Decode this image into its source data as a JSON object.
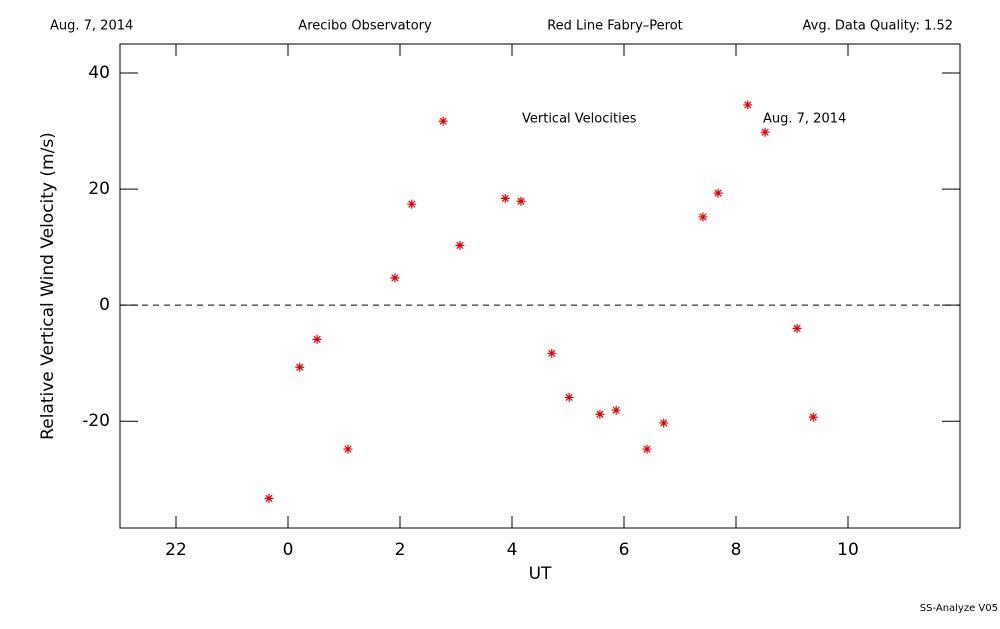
{
  "header": {
    "date": "Aug. 7, 2014",
    "site": "Arecibo Observatory",
    "instrument": "Red Line Fabry–Perot",
    "quality": "Avg. Data Quality: 1.52"
  },
  "footer": "SS-Analyze V05",
  "chart_data": {
    "type": "scatter",
    "annotations": [
      "Vertical Velocities",
      "Aug. 7, 2014"
    ],
    "xlabel": "UT",
    "ylabel": "Relative Vertical Wind Velocity (m/s)",
    "x": [
      -0.34,
      0.21,
      0.52,
      1.07,
      1.91,
      2.21,
      2.77,
      3.07,
      3.88,
      4.16,
      4.71,
      5.02,
      5.57,
      5.86,
      6.41,
      6.71,
      7.41,
      7.68,
      8.21,
      8.52,
      9.09,
      9.38
    ],
    "values": [
      -33.3,
      -10.7,
      -5.9,
      -24.8,
      4.7,
      17.4,
      31.7,
      10.3,
      18.4,
      17.9,
      -8.3,
      -15.9,
      -18.8,
      -18.1,
      -24.8,
      -20.3,
      15.2,
      19.3,
      34.5,
      29.8,
      -4.0,
      -19.3
    ],
    "color": "#e00000",
    "xlim": [
      -3,
      12
    ],
    "xticks": [
      {
        "value": -2,
        "label": "22"
      },
      0,
      2,
      4,
      6,
      8,
      10
    ],
    "ylim": [
      -38.4,
      45
    ],
    "yticks": [
      -20,
      0,
      20,
      40
    ],
    "hline": 0
  }
}
